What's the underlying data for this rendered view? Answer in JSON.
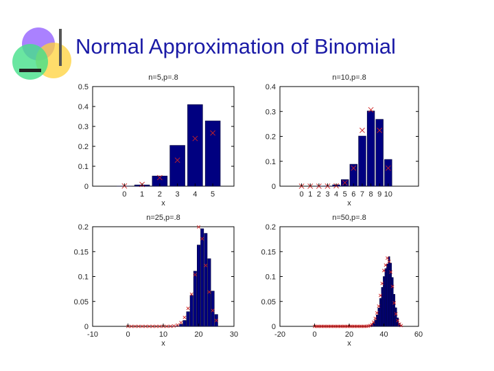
{
  "slide": {
    "title": "Normal Approximation of Binomial",
    "colors": {
      "title": "#1a1aa6",
      "bar": "#000080",
      "marker": "#cc2222",
      "logo_purple": "#9b6bff",
      "logo_yellow": "#ffd23a",
      "logo_green": "#45e08a",
      "logo_bar": "#222222"
    }
  },
  "chart_data": [
    {
      "type": "bar",
      "title": "n=5,p=.8",
      "xlabel": "x",
      "ylabel": "",
      "x": [
        0,
        1,
        2,
        3,
        4,
        5
      ],
      "values": [
        0.0003,
        0.0064,
        0.0512,
        0.2048,
        0.4096,
        0.3277
      ],
      "normal_approx": [
        0.0011,
        0.0087,
        0.0431,
        0.1304,
        0.2392,
        0.2669
      ],
      "ylim": [
        0,
        0.5
      ],
      "xlim": [
        -1.8,
        6.2
      ],
      "yticks": [
        "0",
        "0.1",
        "0.2",
        "0.3",
        "0.4",
        "0.5"
      ],
      "xticks": [
        "0",
        "1",
        "2",
        "3",
        "4",
        "5"
      ]
    },
    {
      "type": "bar",
      "title": "n=10,p=.8",
      "xlabel": "x",
      "ylabel": "",
      "x": [
        0,
        1,
        2,
        3,
        4,
        5,
        6,
        7,
        8,
        9,
        10
      ],
      "values": [
        0.0,
        0.0,
        0.0001,
        0.0008,
        0.0055,
        0.0264,
        0.0881,
        0.2013,
        0.302,
        0.2684,
        0.1074
      ],
      "normal_approx": [
        0.0,
        0.0,
        0.0,
        0.0001,
        0.0014,
        0.0138,
        0.0725,
        0.2242,
        0.3067,
        0.2242,
        0.0725
      ],
      "ylim": [
        0,
        0.4
      ],
      "xlim": [
        -2.5,
        13.5
      ],
      "yticks": [
        "0",
        "0.1",
        "0.2",
        "0.3",
        "0.4"
      ],
      "xticks": [
        "0",
        "1",
        "2",
        "3",
        "4",
        "5",
        "6",
        "7",
        "8",
        "9",
        "10"
      ]
    },
    {
      "type": "bar",
      "title": "n=25,p=.8",
      "xlabel": "x",
      "ylabel": "",
      "x": [
        0,
        1,
        2,
        3,
        4,
        5,
        6,
        7,
        8,
        9,
        10,
        11,
        12,
        13,
        14,
        15,
        16,
        17,
        18,
        19,
        20,
        21,
        22,
        23,
        24,
        25
      ],
      "values": [
        0,
        0,
        0,
        0,
        0,
        0,
        0,
        0,
        0,
        0,
        0,
        0,
        0.0001,
        0.0003,
        0.0012,
        0.0042,
        0.0118,
        0.0294,
        0.0623,
        0.1108,
        0.1633,
        0.196,
        0.1867,
        0.1358,
        0.0708,
        0.0238
      ],
      "normal_approx": [
        0,
        0,
        0,
        0,
        0,
        0,
        0,
        0,
        0,
        0,
        0,
        0,
        0.0002,
        0.0008,
        0.0026,
        0.0075,
        0.0179,
        0.0361,
        0.0644,
        0.1037,
        0.1995,
        0.1759,
        0.1222,
        0.069,
        0.0318,
        0.0118
      ],
      "ylim": [
        0,
        0.2
      ],
      "xlim": [
        -10,
        30
      ],
      "yticks": [
        "0",
        "0.05",
        "0.1",
        "0.15",
        "0.2"
      ],
      "xticks": [
        "-10",
        "0",
        "10",
        "20",
        "30"
      ]
    },
    {
      "type": "bar",
      "title": "n=50,p=.8",
      "xlabel": "x",
      "ylabel": "",
      "x": [
        0,
        1,
        2,
        3,
        4,
        5,
        6,
        7,
        8,
        9,
        10,
        11,
        12,
        13,
        14,
        15,
        16,
        17,
        18,
        19,
        20,
        21,
        22,
        23,
        24,
        25,
        26,
        27,
        28,
        29,
        30,
        31,
        32,
        33,
        34,
        35,
        36,
        37,
        38,
        39,
        40,
        41,
        42,
        43,
        44,
        45,
        46,
        47,
        48,
        49,
        50
      ],
      "values": [
        0,
        0,
        0,
        0,
        0,
        0,
        0,
        0,
        0,
        0,
        0,
        0,
        0,
        0,
        0,
        0,
        0,
        0,
        0,
        0,
        0,
        0,
        0,
        0,
        0,
        0,
        0,
        0,
        0,
        0,
        0.0002,
        0.0005,
        0.0014,
        0.0032,
        0.0067,
        0.0128,
        0.0229,
        0.037,
        0.056,
        0.0783,
        0.1,
        0.116,
        0.125,
        0.14,
        0.127,
        0.0981,
        0.0643,
        0.0373,
        0.0169,
        0.0062,
        0.0014
      ],
      "normal_approx": [
        0,
        0,
        0,
        0,
        0,
        0,
        0,
        0,
        0,
        0,
        0,
        0,
        0,
        0,
        0,
        0,
        0,
        0,
        0,
        0,
        0,
        0,
        0,
        0,
        0,
        0,
        0,
        0,
        0,
        0,
        0.0002,
        0.0006,
        0.0016,
        0.0039,
        0.0084,
        0.016,
        0.027,
        0.0406,
        0.062,
        0.086,
        0.112,
        0.123,
        0.137,
        0.13,
        0.109,
        0.08,
        0.047,
        0.025,
        0.0115,
        0.0045,
        0.0015
      ],
      "ylim": [
        0,
        0.2
      ],
      "xlim": [
        -20,
        60
      ],
      "yticks": [
        "0",
        "0.05",
        "0.1",
        "0.15",
        "0.2"
      ],
      "xticks": [
        "-20",
        "0",
        "20",
        "40",
        "60"
      ]
    }
  ]
}
